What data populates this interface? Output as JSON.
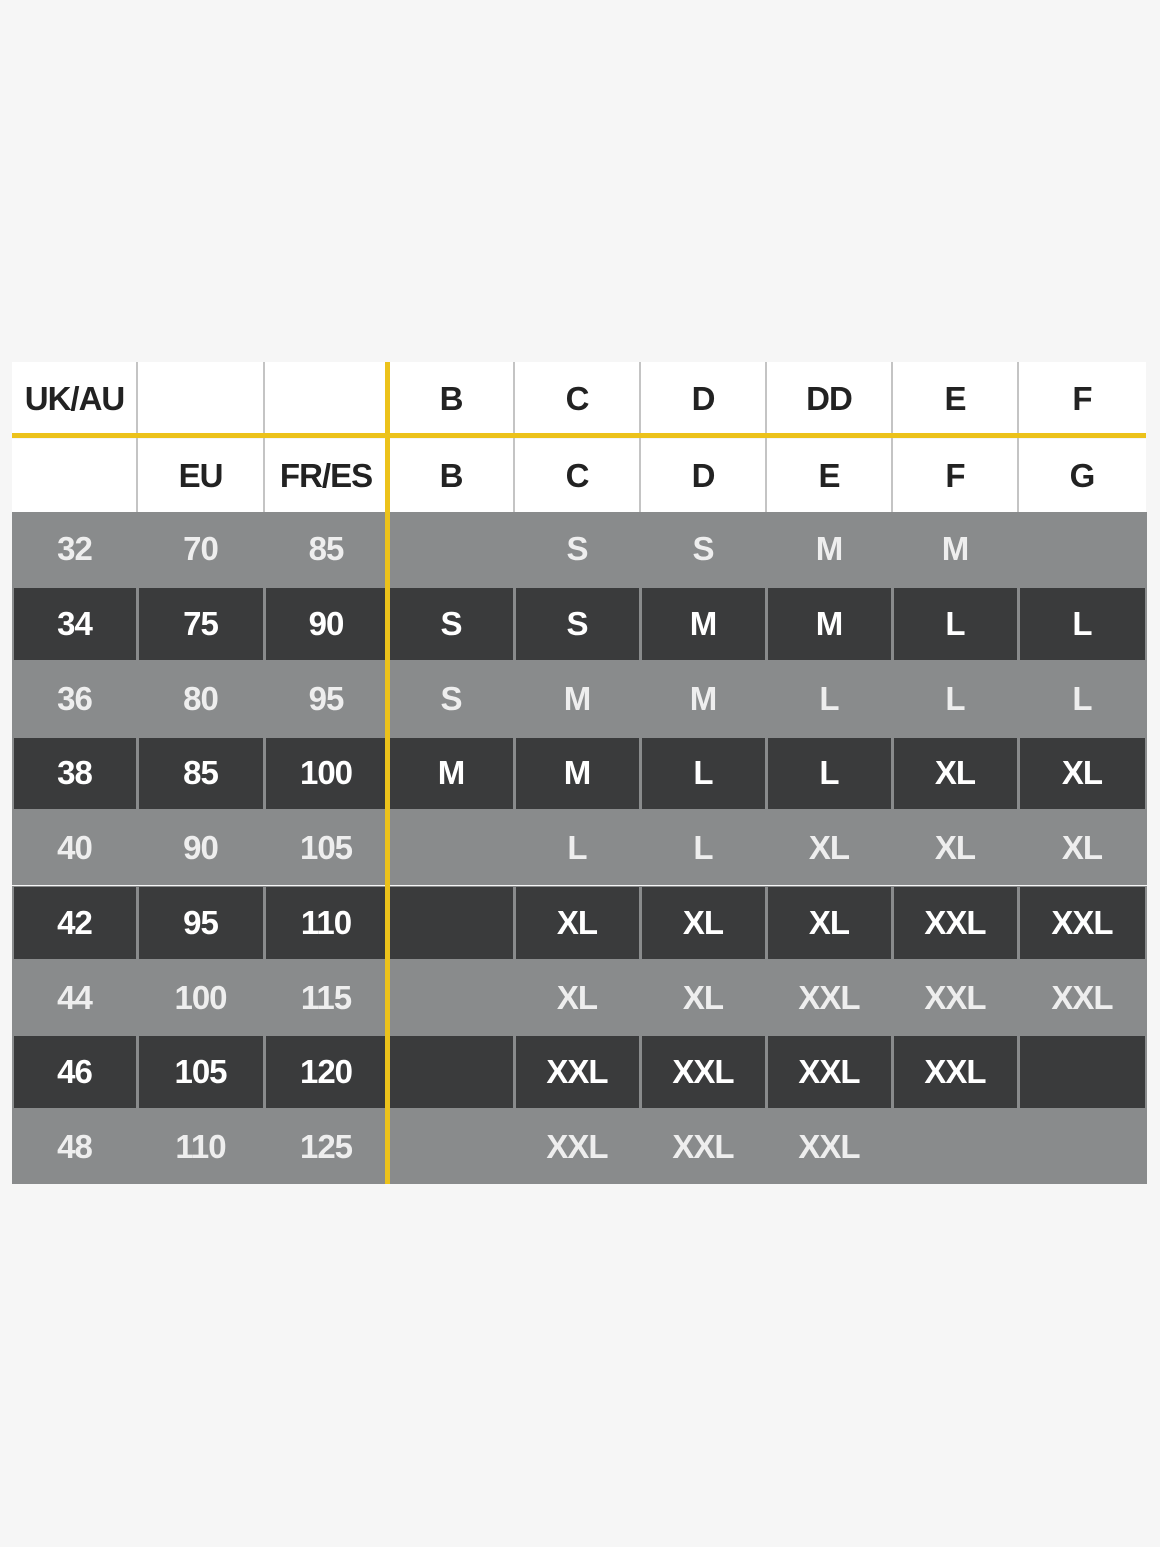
{
  "table": {
    "header_rows": [
      [
        "UK/AU",
        null,
        null,
        "B",
        "C",
        "D",
        "DD",
        "E",
        "F"
      ],
      [
        null,
        "EU",
        "FR/ES",
        "B",
        "C",
        "D",
        "E",
        "F",
        "G"
      ]
    ],
    "rows": [
      [
        32,
        70,
        85,
        null,
        "S",
        "S",
        "M",
        "M",
        null
      ],
      [
        34,
        75,
        90,
        "S",
        "S",
        "M",
        "M",
        "L",
        "L"
      ],
      [
        36,
        80,
        95,
        "S",
        "M",
        "M",
        "L",
        "L",
        "L"
      ],
      [
        38,
        85,
        100,
        "M",
        "M",
        "L",
        "L",
        "XL",
        "XL"
      ],
      [
        40,
        90,
        105,
        null,
        "L",
        "L",
        "XL",
        "XL",
        "XL"
      ],
      [
        42,
        95,
        110,
        null,
        "XL",
        "XL",
        "XL",
        "XXL",
        "XXL"
      ],
      [
        44,
        100,
        115,
        null,
        "XL",
        "XL",
        "XXL",
        "XXL",
        "XXL"
      ],
      [
        46,
        105,
        120,
        null,
        "XXL",
        "XXL",
        "XXL",
        "XXL",
        null
      ],
      [
        48,
        110,
        125,
        null,
        "XXL",
        "XXL",
        "XXL",
        null,
        null
      ]
    ]
  }
}
